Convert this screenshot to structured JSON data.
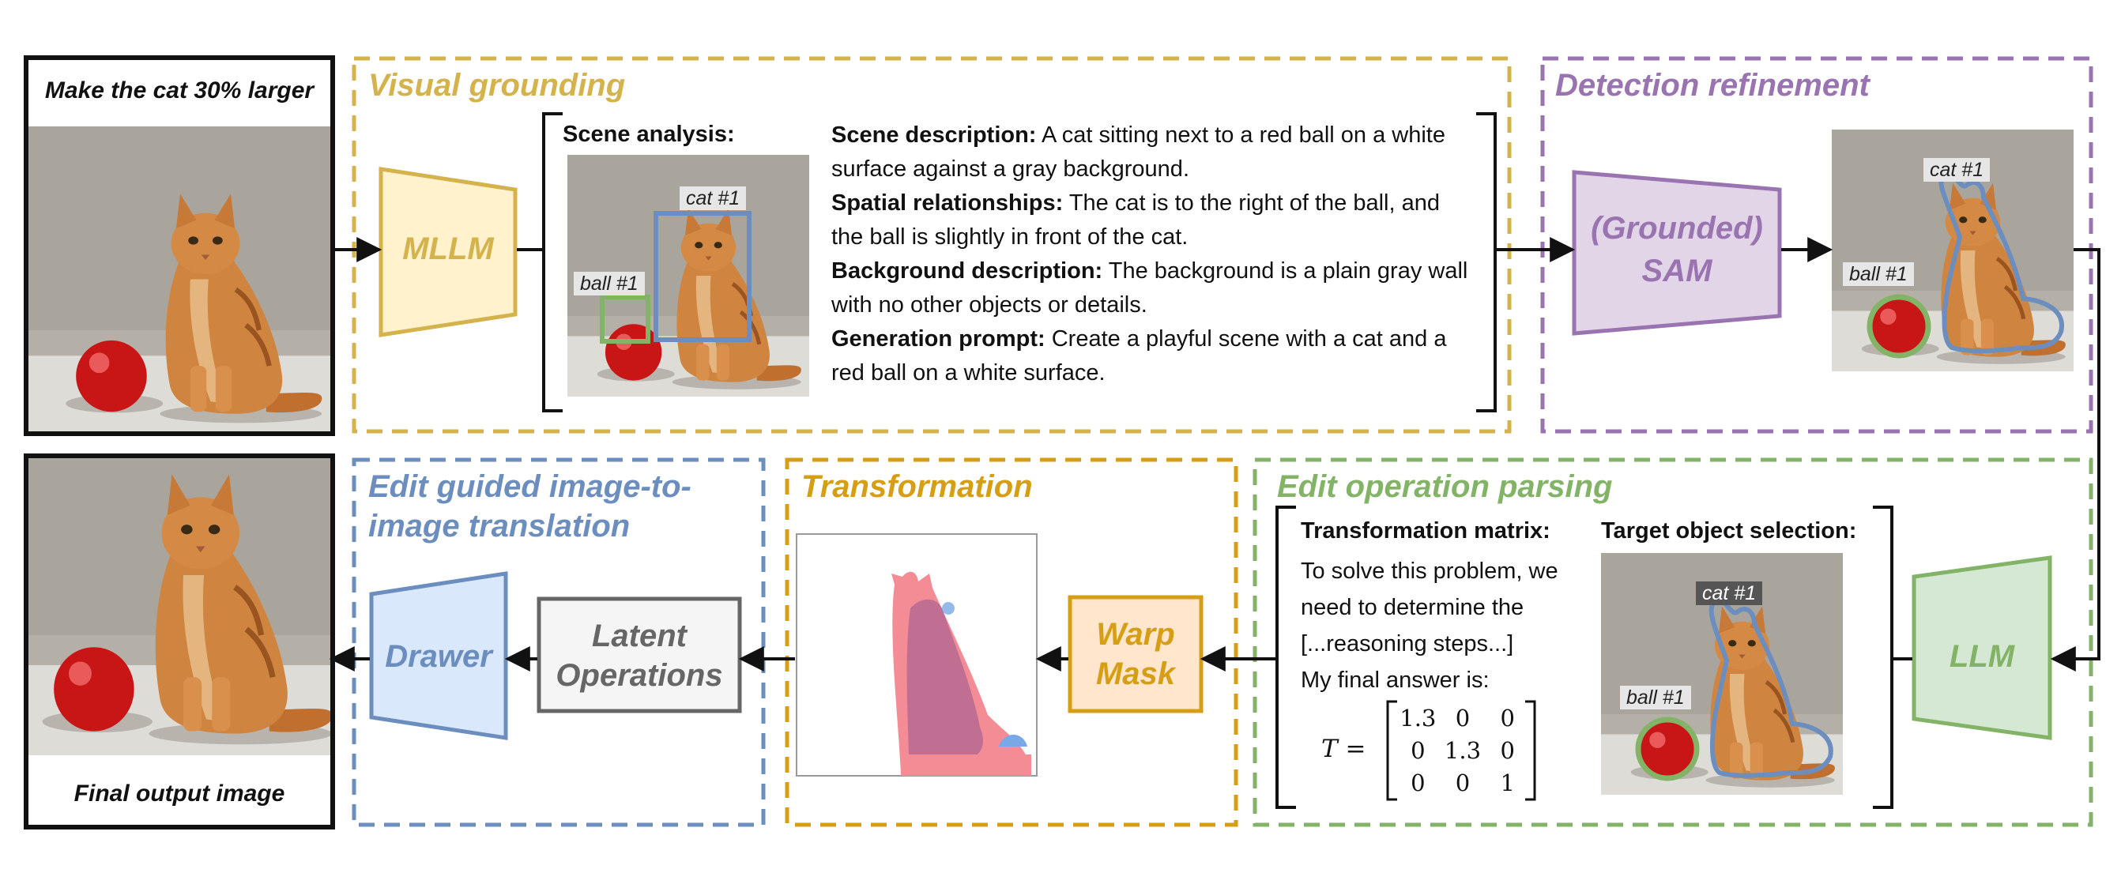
{
  "input": {
    "instruction": "Make the cat 30% larger"
  },
  "output": {
    "caption": "Final output image"
  },
  "visual_grounding": {
    "title": "Visual grounding",
    "block": "MLLM",
    "scene_heading": "Scene analysis:",
    "cat_label": "cat #1",
    "ball_label": "ball #1",
    "items": [
      {
        "head": "Scene description:",
        "text": "A cat sitting next to a red ball on a white surface against a gray background."
      },
      {
        "head": "Spatial relationships:",
        "text": "The cat is to the right of the ball, and the ball is slightly in front of the cat."
      },
      {
        "head": "Background description:",
        "text": "The background is a plain gray wall with no other objects or details."
      },
      {
        "head": "Generation prompt:",
        "text": "Create a playful scene with a cat and a red ball on a white surface."
      }
    ]
  },
  "detection": {
    "title": "Detection refinement",
    "block_line1": "(Grounded)",
    "block_line2": "SAM",
    "cat_label": "cat #1",
    "ball_label": "ball #1"
  },
  "parsing": {
    "title": "Edit operation parsing",
    "block": "LLM",
    "matrix_heading": "Transformation matrix:",
    "reasoning_lines": [
      "To solve this problem, we",
      "need to determine the",
      "[...reasoning steps...]",
      "My final answer is:"
    ],
    "matrix_symbol": "T =",
    "matrix": [
      [
        "1.3",
        "0",
        "0"
      ],
      [
        "0",
        "1.3",
        "0"
      ],
      [
        "0",
        "0",
        "1"
      ]
    ],
    "target_heading": "Target object selection:",
    "cat_label": "cat #1",
    "ball_label": "ball #1"
  },
  "transformation": {
    "title": "Transformation",
    "block_line1": "Warp",
    "block_line2": "Mask"
  },
  "translation": {
    "title_line1": "Edit guided image-to-",
    "title_line2": "image translation",
    "block": "Drawer",
    "latent_line1": "Latent",
    "latent_line2": "Operations"
  },
  "colors": {
    "grounding": "#d4b24c",
    "detection": "#9a74b0",
    "parsing": "#82b366",
    "transformation": "#d69e14",
    "translation": "#6c8ebf",
    "latent": "#666666"
  }
}
